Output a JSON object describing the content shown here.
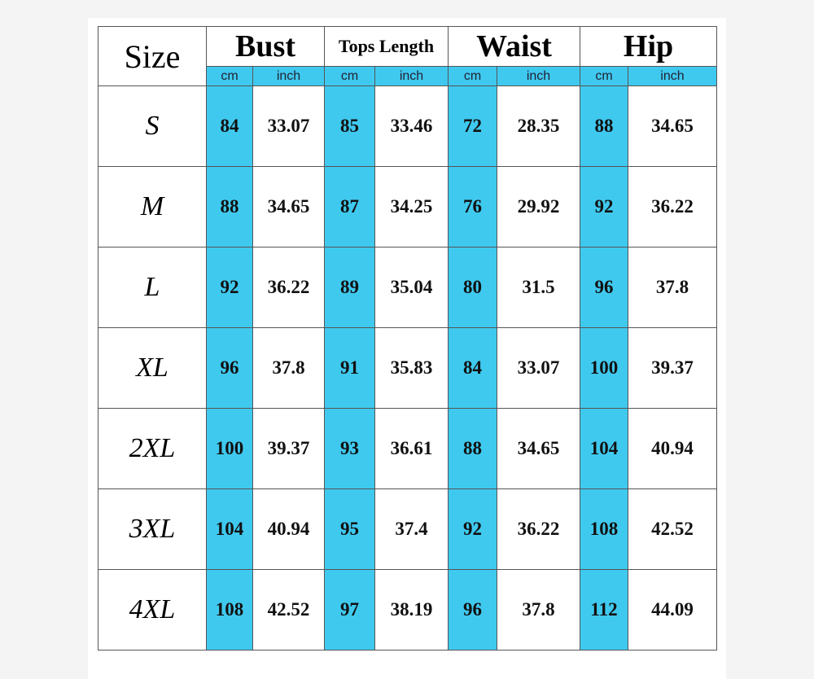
{
  "table": {
    "header": {
      "size": "Size",
      "groups": [
        "Bust",
        "Tops Length",
        "Waist",
        "Hip"
      ]
    },
    "units": [
      "cm",
      "inch",
      "cm",
      "inch",
      "cm",
      "inch",
      "cm",
      "inch"
    ],
    "rows": [
      [
        "S",
        84,
        33.07,
        85,
        33.46,
        72,
        28.35,
        88,
        34.65
      ],
      [
        "M",
        88,
        34.65,
        87,
        34.25,
        76,
        29.92,
        92,
        36.22
      ],
      [
        "L",
        92,
        36.22,
        89,
        35.04,
        80,
        31.5,
        96,
        37.8
      ],
      [
        "XL",
        96,
        37.8,
        91,
        35.83,
        84,
        33.07,
        100,
        39.37
      ],
      [
        "2XL",
        100,
        39.37,
        93,
        36.61,
        88,
        34.65,
        104,
        40.94
      ],
      [
        "3XL",
        104,
        40.94,
        95,
        37.4,
        92,
        36.22,
        108,
        42.52
      ],
      [
        "4XL",
        108,
        42.52,
        97,
        38.19,
        96,
        37.8,
        112,
        44.09
      ]
    ]
  }
}
